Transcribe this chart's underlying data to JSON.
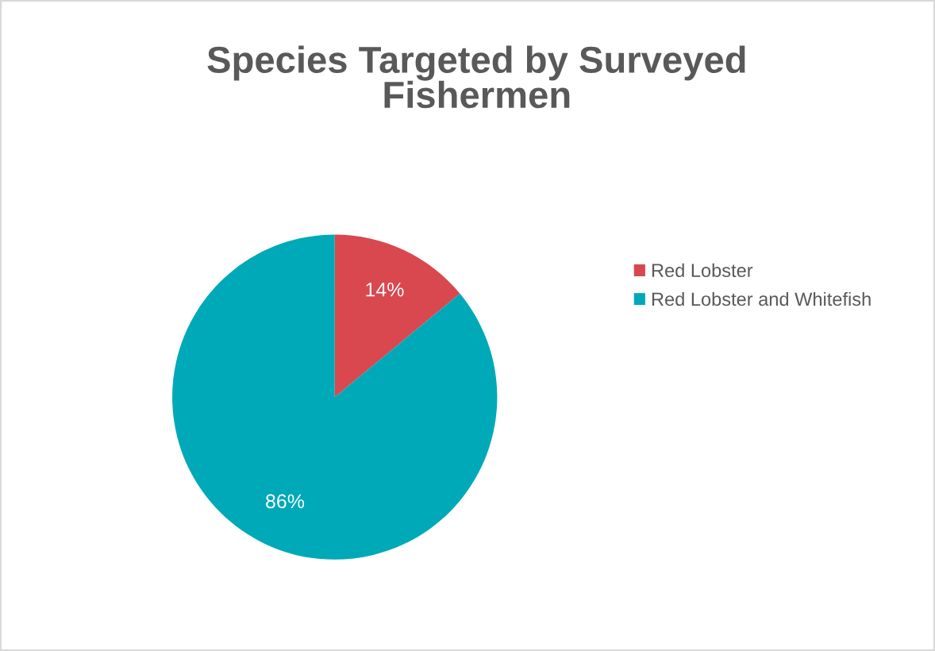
{
  "chart_data": {
    "type": "pie",
    "title": "Species Targeted by Surveyed\nFishermen",
    "categories": [
      "Red Lobster",
      "Red Lobster and Whitefish"
    ],
    "values": [
      14,
      86
    ],
    "colors": [
      "#d9474f",
      "#00a9b8"
    ],
    "value_labels": [
      "14%",
      "86%"
    ],
    "legend": "right"
  }
}
